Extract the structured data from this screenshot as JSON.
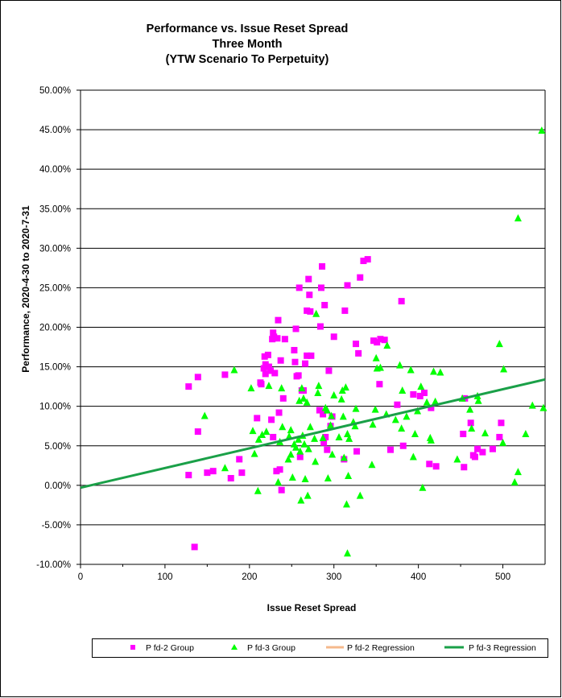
{
  "chart_data": {
    "type": "scatter",
    "title": [
      "Performance vs. Issue Reset Spread",
      "Three Month",
      "(YTW Scenario To Perpetuity)"
    ],
    "xlabel": "Issue  Reset  Spread",
    "ylabel": "Performance, 2020-4-30  to  2020-7-31",
    "xlim": [
      0,
      550
    ],
    "ylim": [
      -10,
      50
    ],
    "x_ticks": [
      0,
      100,
      200,
      300,
      400,
      500
    ],
    "x_tick_labels": [
      "0",
      "100",
      "200",
      "300",
      "400",
      "500"
    ],
    "y_ticks": [
      -10,
      -5,
      0,
      5,
      10,
      15,
      20,
      25,
      30,
      35,
      40,
      45,
      50
    ],
    "y_tick_labels": [
      "-10.00%",
      "-5.00%",
      "0.00%",
      "5.00%",
      "10.00%",
      "15.00%",
      "20.00%",
      "25.00%",
      "30.00%",
      "35.00%",
      "40.00%",
      "45.00%",
      "50.00%"
    ],
    "grid": "horizontal",
    "series": [
      {
        "name": "P fd-2 Group",
        "kind": "points",
        "marker": "square",
        "color": "#ff00ff",
        "points": [
          [
            128,
            12.5
          ],
          [
            128,
            1.3
          ],
          [
            135,
            -7.8
          ],
          [
            139,
            6.8
          ],
          [
            139,
            13.7
          ],
          [
            150,
            1.6
          ],
          [
            157,
            1.8
          ],
          [
            171,
            14.0
          ],
          [
            178,
            0.9
          ],
          [
            188,
            3.3
          ],
          [
            191,
            1.6
          ],
          [
            209,
            8.5
          ],
          [
            213,
            13.0
          ],
          [
            214,
            12.8
          ],
          [
            217,
            14.8
          ],
          [
            218,
            16.3
          ],
          [
            219,
            15.3
          ],
          [
            219,
            14.1
          ],
          [
            220,
            15.0
          ],
          [
            222,
            16.5
          ],
          [
            223,
            15.0
          ],
          [
            225,
            14.5
          ],
          [
            226,
            8.3
          ],
          [
            227,
            18.5
          ],
          [
            228,
            19.3
          ],
          [
            228,
            6.1
          ],
          [
            229,
            18.8
          ],
          [
            230,
            14.2
          ],
          [
            232,
            1.8
          ],
          [
            233,
            18.6
          ],
          [
            234,
            20.9
          ],
          [
            235,
            9.2
          ],
          [
            236,
            2.0
          ],
          [
            237,
            15.8
          ],
          [
            238,
            -0.6
          ],
          [
            240,
            11.0
          ],
          [
            242,
            18.5
          ],
          [
            253,
            17.1
          ],
          [
            254,
            15.6
          ],
          [
            255,
            19.8
          ],
          [
            256,
            13.8
          ],
          [
            258,
            13.9
          ],
          [
            259,
            25.0
          ],
          [
            260,
            3.6
          ],
          [
            262,
            12.0
          ],
          [
            264,
            12.0
          ],
          [
            266,
            15.4
          ],
          [
            268,
            16.4
          ],
          [
            268,
            22.1
          ],
          [
            270,
            26.1
          ],
          [
            271,
            24.1
          ],
          [
            272,
            22.0
          ],
          [
            273,
            16.4
          ],
          [
            283,
            9.5
          ],
          [
            284,
            20.1
          ],
          [
            285,
            25.0
          ],
          [
            286,
            27.7
          ],
          [
            287,
            9.0
          ],
          [
            288,
            5.4
          ],
          [
            289,
            22.8
          ],
          [
            290,
            6.1
          ],
          [
            292,
            4.5
          ],
          [
            294,
            14.5
          ],
          [
            296,
            7.5
          ],
          [
            298,
            8.7
          ],
          [
            300,
            18.8
          ],
          [
            312,
            3.3
          ],
          [
            313,
            22.1
          ],
          [
            316,
            25.3
          ],
          [
            326,
            17.9
          ],
          [
            327,
            4.3
          ],
          [
            329,
            16.7
          ],
          [
            331,
            26.3
          ],
          [
            335,
            28.4
          ],
          [
            340,
            28.6
          ],
          [
            347,
            18.3
          ],
          [
            351,
            18.1
          ],
          [
            354,
            12.8
          ],
          [
            355,
            18.5
          ],
          [
            360,
            18.4
          ],
          [
            367,
            4.5
          ],
          [
            375,
            10.2
          ],
          [
            380,
            23.3
          ],
          [
            382,
            5.0
          ],
          [
            394,
            11.5
          ],
          [
            402,
            11.3
          ],
          [
            407,
            11.7
          ],
          [
            413,
            2.7
          ],
          [
            415,
            9.8
          ],
          [
            421,
            2.4
          ],
          [
            453,
            6.5
          ],
          [
            454,
            2.3
          ],
          [
            455,
            11.0
          ],
          [
            462,
            7.9
          ],
          [
            465,
            3.8
          ],
          [
            467,
            3.6
          ],
          [
            470,
            4.6
          ],
          [
            476,
            4.2
          ],
          [
            488,
            4.6
          ],
          [
            496,
            6.1
          ],
          [
            498,
            7.9
          ]
        ]
      },
      {
        "name": "P fd-3 Group",
        "kind": "points",
        "marker": "triangle",
        "color": "#00ff00",
        "points": [
          [
            147,
            8.8
          ],
          [
            171,
            2.2
          ],
          [
            182,
            14.6
          ],
          [
            202,
            12.3
          ],
          [
            204,
            6.9
          ],
          [
            206,
            4.0
          ],
          [
            210,
            -0.7
          ],
          [
            211,
            5.8
          ],
          [
            215,
            6.4
          ],
          [
            220,
            6.8
          ],
          [
            223,
            12.6
          ],
          [
            234,
            0.4
          ],
          [
            236,
            5.5
          ],
          [
            238,
            12.3
          ],
          [
            239,
            7.4
          ],
          [
            246,
            3.3
          ],
          [
            247,
            6.2
          ],
          [
            249,
            3.9
          ],
          [
            249,
            7.0
          ],
          [
            251,
            1.0
          ],
          [
            253,
            5.2
          ],
          [
            255,
            4.8
          ],
          [
            258,
            5.8
          ],
          [
            259,
            10.7
          ],
          [
            260,
            4.3
          ],
          [
            261,
            -1.9
          ],
          [
            262,
            12.3
          ],
          [
            263,
            6.3
          ],
          [
            264,
            11.0
          ],
          [
            265,
            5.2
          ],
          [
            266,
            0.8
          ],
          [
            268,
            10.5
          ],
          [
            269,
            -1.3
          ],
          [
            270,
            4.6
          ],
          [
            272,
            7.4
          ],
          [
            277,
            5.9
          ],
          [
            278,
            3.0
          ],
          [
            279,
            21.7
          ],
          [
            281,
            11.7
          ],
          [
            282,
            12.6
          ],
          [
            287,
            6.0
          ],
          [
            290,
            9.8
          ],
          [
            292,
            9.5
          ],
          [
            293,
            0.9
          ],
          [
            296,
            7.6
          ],
          [
            297,
            8.8
          ],
          [
            298,
            3.9
          ],
          [
            300,
            11.4
          ],
          [
            306,
            6.1
          ],
          [
            309,
            10.9
          ],
          [
            310,
            12.0
          ],
          [
            311,
            8.7
          ],
          [
            312,
            3.5
          ],
          [
            314,
            12.4
          ],
          [
            315,
            -2.4
          ],
          [
            316,
            6.5
          ],
          [
            316,
            -8.6
          ],
          [
            317,
            1.2
          ],
          [
            318,
            5.9
          ],
          [
            323,
            8.0
          ],
          [
            325,
            7.5
          ],
          [
            326,
            9.7
          ],
          [
            331,
            -1.3
          ],
          [
            345,
            2.6
          ],
          [
            346,
            7.7
          ],
          [
            349,
            9.6
          ],
          [
            350,
            16.1
          ],
          [
            351,
            14.8
          ],
          [
            355,
            14.9
          ],
          [
            363,
            17.7
          ],
          [
            362,
            9.0
          ],
          [
            373,
            8.3
          ],
          [
            378,
            15.2
          ],
          [
            380,
            7.2
          ],
          [
            381,
            12.0
          ],
          [
            386,
            8.7
          ],
          [
            391,
            14.6
          ],
          [
            394,
            3.6
          ],
          [
            396,
            6.5
          ],
          [
            399,
            9.4
          ],
          [
            403,
            12.5
          ],
          [
            405,
            -0.3
          ],
          [
            410,
            10.5
          ],
          [
            414,
            6.0
          ],
          [
            415,
            5.7
          ],
          [
            418,
            14.4
          ],
          [
            420,
            10.6
          ],
          [
            426,
            14.3
          ],
          [
            446,
            3.3
          ],
          [
            452,
            11.0
          ],
          [
            461,
            9.6
          ],
          [
            463,
            7.2
          ],
          [
            470,
            11.3
          ],
          [
            471,
            10.7
          ],
          [
            479,
            6.6
          ],
          [
            496,
            17.9
          ],
          [
            501,
            14.7
          ],
          [
            500,
            5.4
          ],
          [
            514,
            0.4
          ],
          [
            518,
            33.8
          ],
          [
            518,
            1.7
          ],
          [
            527,
            6.5
          ],
          [
            535,
            10.1
          ],
          [
            546,
            44.9
          ],
          [
            548,
            9.8
          ]
        ]
      },
      {
        "name": "P fd-2 Regression",
        "kind": "line",
        "color": "#f5b98c",
        "x": [],
        "y": []
      },
      {
        "name": "P fd-3 Regression",
        "kind": "line",
        "color": "#1aa048",
        "x": [
          0,
          550
        ],
        "y": [
          -0.3,
          13.4
        ]
      }
    ],
    "legend_position": "bottom"
  }
}
